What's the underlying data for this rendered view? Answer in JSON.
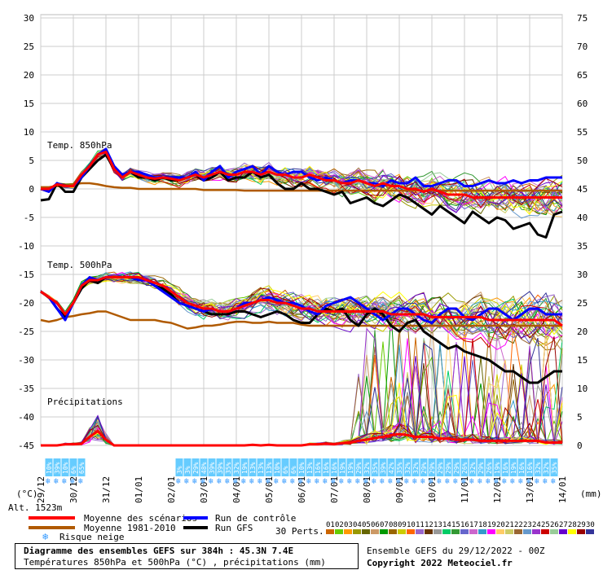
{
  "chart_data": {
    "type": "line",
    "title": "Diagramme des ensembles GEFS sur 384h : 45.3N 7.4E",
    "subtitle": "Températures 850hPa et 500hPa (°C) , précipitations (mm)",
    "run_info": "Ensemble GEFS du 29/12/2022 - 00Z",
    "copyright": "Copyright 2022 Meteociel.fr",
    "altitude_label": "Alt. 1523m",
    "left_axis_unit": "(°C)",
    "right_axis_unit": "(mm)",
    "left_ticks": [
      30,
      25,
      20,
      15,
      10,
      5,
      0,
      -5,
      -10,
      -15,
      -20,
      -25,
      -30,
      -35,
      -40,
      -45
    ],
    "right_ticks": [
      75,
      70,
      65,
      60,
      55,
      50,
      45,
      40,
      35,
      30,
      25,
      20,
      15,
      10,
      5,
      0
    ],
    "ylim": [
      -45,
      30
    ],
    "x_dates": [
      "29/12",
      "30/12",
      "31/12",
      "01/01",
      "02/01",
      "03/01",
      "04/01",
      "05/01",
      "06/01",
      "07/01",
      "08/01",
      "09/01",
      "10/01",
      "11/01",
      "12/01",
      "13/01",
      "14/01"
    ],
    "section_labels": {
      "t850": "Temp. 850hPa",
      "t500": "Temp. 500hPa",
      "precip": "Précipitations"
    },
    "snow_risk_pct": [
      [
        "10%",
        "39%",
        "10%",
        "6%",
        "65%"
      ],
      [
        "3%",
        "3%",
        "29%",
        "48%",
        "39%",
        "39%",
        "35%",
        "32%",
        "19%",
        "13%",
        "13%",
        "13%",
        "10%",
        "6%",
        "6%",
        "10%",
        "13%",
        "16%",
        "16%",
        "16%",
        "19%",
        "19%",
        "29%",
        "32%",
        "35%",
        "39%",
        "42%",
        "35%",
        "32%",
        "32%",
        "29%",
        "29%",
        "29%",
        "29%",
        "29%",
        "26%",
        "32%",
        "29%",
        "26%",
        "19%",
        "16%",
        "19%",
        "16%",
        "16%",
        "32%",
        "32%",
        "35%"
      ]
    ],
    "series": [
      {
        "name": "Moyenne des scénarios",
        "color": "#ff0000",
        "t850": [
          0,
          0,
          0.8,
          0.5,
          0.5,
          2.5,
          4,
          6,
          6.5,
          3.5,
          2,
          3,
          2.5,
          2,
          1.8,
          2,
          1.8,
          1.5,
          2,
          2.5,
          2,
          2.5,
          3,
          2.5,
          2.5,
          3,
          3,
          2.5,
          3,
          2.5,
          2.5,
          2,
          2,
          2.5,
          2,
          1.5,
          1.5,
          1,
          1,
          1.5,
          1,
          0.5,
          1,
          0.5,
          0.5,
          0,
          0,
          -0.5,
          0,
          -0.5,
          -1,
          -1,
          -1,
          -1.5,
          -1.5,
          -1.5,
          -1.5,
          -1.5,
          -1.5,
          -1.5,
          -1.5,
          -1.5,
          -1.5,
          -1.5,
          -1.5
        ],
        "t500": [
          -18,
          -19,
          -20,
          -22,
          -20,
          -17,
          -16,
          -16,
          -15.5,
          -15.5,
          -15.5,
          -15.5,
          -15.5,
          -16,
          -16.5,
          -17,
          -18,
          -19,
          -20,
          -20.5,
          -21,
          -21,
          -21.5,
          -21.5,
          -21,
          -20.5,
          -20,
          -19.5,
          -19.5,
          -20,
          -20,
          -20.5,
          -21,
          -21,
          -21.5,
          -21.5,
          -21.5,
          -21.5,
          -21.5,
          -21.5,
          -21.5,
          -21.5,
          -21.5,
          -22,
          -22,
          -22,
          -22,
          -22,
          -22.5,
          -22.5,
          -22.5,
          -22.5,
          -22.5,
          -22.5,
          -22.5,
          -23,
          -23,
          -23,
          -23,
          -23,
          -23,
          -23,
          -23,
          -23,
          -24
        ],
        "precip": [
          0,
          0,
          0,
          0.2,
          0.2,
          0.3,
          1.5,
          2.5,
          1,
          0,
          0,
          0,
          0,
          0,
          0,
          0,
          0,
          0,
          0,
          0,
          0,
          0,
          0,
          0,
          0,
          0,
          0.1,
          0,
          0.1,
          0,
          0,
          0,
          0,
          0.2,
          0.2,
          0.3,
          0.2,
          0.4,
          0.5,
          0.8,
          1,
          1.3,
          1.5,
          1.8,
          2,
          1.8,
          1.5,
          1.5,
          1.5,
          1.2,
          1.2,
          1,
          1,
          1,
          0.8,
          0.8,
          0.8,
          0.8,
          0.8,
          0.8,
          0.8,
          0.8,
          0.5,
          0.5,
          0.5
        ]
      },
      {
        "name": "Moyenne 1981-2010",
        "color": "#b05a00",
        "t850": [
          0.3,
          0.3,
          0.5,
          0.5,
          0.8,
          1,
          1,
          0.8,
          0.5,
          0.3,
          0.2,
          0.2,
          0,
          0,
          0,
          0,
          0,
          0,
          0,
          0,
          -0.2,
          -0.2,
          -0.2,
          -0.2,
          -0.2,
          -0.3,
          -0.3,
          -0.3,
          -0.3,
          -0.3,
          -0.3,
          -0.3,
          -0.3,
          -0.3,
          -0.3,
          -0.3,
          -0.3,
          -0.3,
          -0.3,
          -0.3,
          -0.3,
          -0.3,
          -0.3,
          -0.3,
          -0.3,
          -0.3,
          -0.3,
          -0.3,
          -0.3,
          -0.3,
          -0.3,
          -0.3,
          -0.3,
          -0.3,
          -0.3,
          -0.3,
          -0.3,
          -0.3,
          -0.3,
          -0.3,
          -0.3,
          -0.3,
          -0.3,
          -0.3,
          -0.3
        ],
        "t500": [
          -23,
          -23.3,
          -23,
          -22.5,
          -22.3,
          -22,
          -21.8,
          -21.5,
          -21.5,
          -22,
          -22.5,
          -23,
          -23,
          -23,
          -23,
          -23.3,
          -23.5,
          -24,
          -24.5,
          -24.3,
          -24,
          -24,
          -23.8,
          -23.5,
          -23.3,
          -23.3,
          -23.5,
          -23.5,
          -23.3,
          -23.5,
          -23.5,
          -23.5,
          -23.8,
          -24,
          -24,
          -24,
          -24,
          -24,
          -24,
          -24,
          -24,
          -24,
          -24,
          -24,
          -24,
          -24,
          -24,
          -24,
          -24,
          -24,
          -24,
          -24,
          -24,
          -24,
          -24,
          -24,
          -24,
          -24,
          -24,
          -24,
          -24,
          -24,
          -24,
          -24,
          -24
        ]
      },
      {
        "name": "Run de contrôle",
        "color": "#0000ff",
        "t850": [
          0,
          -0.5,
          1,
          0.5,
          0.5,
          2,
          4,
          6,
          7,
          4,
          2.5,
          3,
          3,
          2.5,
          2,
          2,
          2,
          2,
          2,
          3,
          1.5,
          3,
          4,
          2,
          3,
          3.5,
          4,
          2.5,
          4,
          3,
          2.5,
          3,
          3,
          2,
          1.5,
          2,
          1.5,
          1,
          1.5,
          1.5,
          1,
          1,
          0.5,
          1.5,
          1,
          1,
          2,
          0.5,
          0.5,
          1,
          1.5,
          1.5,
          0.5,
          0.5,
          1,
          1.5,
          1,
          1,
          1.5,
          1,
          1.5,
          1.5,
          2,
          2,
          2
        ],
        "t500": [
          -18,
          -19,
          -21,
          -23,
          -20,
          -17,
          -15.5,
          -16,
          -15.5,
          -15.5,
          -15.5,
          -15.5,
          -16,
          -16,
          -17,
          -18,
          -19,
          -20,
          -20.5,
          -21,
          -21.5,
          -21,
          -21.5,
          -21.5,
          -21,
          -20,
          -20,
          -19.5,
          -19,
          -19.5,
          -20,
          -20,
          -20.5,
          -21.5,
          -22,
          -20.5,
          -20,
          -19.5,
          -19,
          -20,
          -21,
          -22,
          -23,
          -22,
          -21,
          -21,
          -22,
          -23,
          -23.5,
          -22,
          -21,
          -21,
          -22.5,
          -23,
          -22,
          -21,
          -21,
          -22,
          -23,
          -22,
          -21,
          -21,
          -22,
          -22,
          -22
        ]
      },
      {
        "name": "Run GFS",
        "color": "#000000",
        "t850": [
          -2,
          -1.8,
          1,
          -0.5,
          -0.5,
          2,
          3.5,
          5,
          6,
          3.5,
          2,
          3,
          2,
          2,
          1.5,
          2,
          1.5,
          1.5,
          2,
          2.5,
          1.5,
          2,
          3,
          1.5,
          2,
          2,
          3,
          2,
          2.5,
          1,
          0,
          0,
          1,
          0,
          0,
          -0.5,
          -1,
          -0.5,
          -2.5,
          -2,
          -1.5,
          -2.5,
          -3,
          -2,
          -1,
          -1.5,
          -2.5,
          -3.5,
          -4.5,
          -3,
          -4,
          -5,
          -6,
          -4,
          -5,
          -6,
          -5,
          -5.5,
          -7,
          -6.5,
          -6,
          -8,
          -8.5,
          -4.5,
          -4
        ],
        "t500": [
          -18,
          -19,
          -21,
          -22.5,
          -20,
          -17.5,
          -16,
          -16.5,
          -15.5,
          -15.5,
          -15.5,
          -15.5,
          -15.5,
          -16,
          -17,
          -17.5,
          -18.5,
          -20,
          -20.5,
          -21,
          -21.5,
          -22,
          -22,
          -22,
          -21.5,
          -21.5,
          -22,
          -22.5,
          -22,
          -21.5,
          -22,
          -23,
          -23.5,
          -23.5,
          -22,
          -21,
          -21.5,
          -21,
          -23,
          -24,
          -22,
          -21,
          -22,
          -24,
          -25,
          -23.5,
          -23,
          -25,
          -26,
          -27,
          -28,
          -27.5,
          -28.5,
          -29,
          -29.5,
          -30,
          -31,
          -32,
          -32,
          -33,
          -34,
          -34,
          -33,
          -32,
          -32
        ]
      }
    ],
    "perturbations_label": "30 Perts.",
    "perturbation_ids": [
      "01",
      "02",
      "03",
      "04",
      "05",
      "06",
      "07",
      "08",
      "09",
      "10",
      "11",
      "12",
      "13",
      "14",
      "15",
      "16",
      "17",
      "18",
      "19",
      "20",
      "21",
      "22",
      "23",
      "24",
      "25",
      "26",
      "27",
      "28",
      "29",
      "30"
    ],
    "perturbation_colors": [
      "#cc6600",
      "#66cc00",
      "#ff9900",
      "#999900",
      "#666600",
      "#cc9966",
      "#009900",
      "#996600",
      "#cccc00",
      "#ff6600",
      "#9966cc",
      "#663300",
      "#999999",
      "#00cc66",
      "#339933",
      "#6666cc",
      "#cc66cc",
      "#3399cc",
      "#ff00ff",
      "#ffcc66",
      "#cccc66",
      "#996633",
      "#6699cc",
      "#9933cc",
      "#cc0000",
      "#99cc99",
      "#6600cc",
      "#ffff00",
      "#990000",
      "#333399"
    ],
    "legend_snow": "Risque neige"
  }
}
